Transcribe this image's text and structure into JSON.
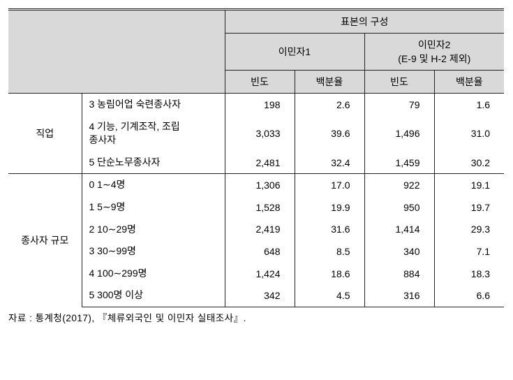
{
  "header": {
    "superhead": "표본의 구성",
    "group1": "이민자1",
    "group2_line1": "이민자2",
    "group2_line2": "(E-9 및 H-2 제외)",
    "freq": "빈도",
    "pct": "백분율"
  },
  "sections": [
    {
      "category": "직업",
      "rows": [
        {
          "label": "3 농림어업 숙련종사자",
          "f1": "198",
          "p1": "2.6",
          "f2": "79",
          "p2": "1.6"
        },
        {
          "label": "4 기능, 기계조작, 조립\n   종사자",
          "f1": "3,033",
          "p1": "39.6",
          "f2": "1,496",
          "p2": "31.0"
        },
        {
          "label": "5 단순노무종사자",
          "f1": "2,481",
          "p1": "32.4",
          "f2": "1,459",
          "p2": "30.2"
        }
      ]
    },
    {
      "category": "종사자 규모",
      "rows": [
        {
          "label": "0 1∼4명",
          "f1": "1,306",
          "p1": "17.0",
          "f2": "922",
          "p2": "19.1"
        },
        {
          "label": "1 5∼9명",
          "f1": "1,528",
          "p1": "19.9",
          "f2": "950",
          "p2": "19.7"
        },
        {
          "label": "2 10∼29명",
          "f1": "2,419",
          "p1": "31.6",
          "f2": "1,414",
          "p2": "29.3"
        },
        {
          "label": "3 30∼99명",
          "f1": "648",
          "p1": "8.5",
          "f2": "340",
          "p2": "7.1"
        },
        {
          "label": "4 100∼299명",
          "f1": "1,424",
          "p1": "18.6",
          "f2": "884",
          "p2": "18.3"
        },
        {
          "label": "5 300명 이상",
          "f1": "342",
          "p1": "4.5",
          "f2": "316",
          "p2": "6.6"
        }
      ]
    }
  ],
  "source": "자료 : 통계청(2017), 『체류외국인 및 이민자 실태조사』.",
  "colors": {
    "header_bg": "#d9d9d9",
    "border": "#222222",
    "text": "#000000",
    "bg": "#ffffff"
  },
  "fontsize_pt": 14
}
